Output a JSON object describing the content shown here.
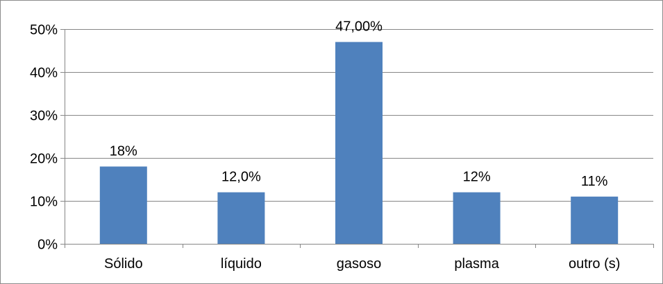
{
  "chart_data": {
    "type": "bar",
    "categories": [
      "Sólido",
      "líquido",
      "gasoso",
      "plasma",
      "outro (s)"
    ],
    "values": [
      18,
      12,
      47,
      12,
      11
    ],
    "data_labels": [
      "18%",
      "12,0%",
      "47,00%",
      "12%",
      "11%"
    ],
    "y_ticks": [
      0,
      10,
      20,
      30,
      40,
      50
    ],
    "y_tick_labels": [
      "0%",
      "10%",
      "20%",
      "30%",
      "40%",
      "50%"
    ],
    "ylim": [
      0,
      50
    ],
    "grid": true,
    "legend": "none",
    "bar_color": "#4f81bd",
    "title": "",
    "xlabel": "",
    "ylabel": ""
  }
}
